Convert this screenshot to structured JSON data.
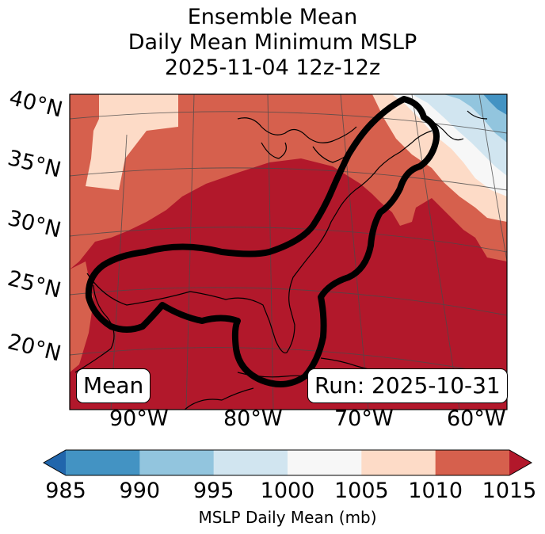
{
  "title": {
    "line1": "Ensemble Mean",
    "line2": "Daily Mean Minimum MSLP",
    "line3": "2025-11-04 12z-12z"
  },
  "map": {
    "lat_labels": [
      "40°N",
      "35°N",
      "30°N",
      "25°N",
      "20°N"
    ],
    "lon_labels": [
      "90°W",
      "80°W",
      "70°W",
      "60°W"
    ],
    "stat_box": "Mean",
    "run_box": "Run: 2025-10-31",
    "region_description_colors": {
      "land_ocean_high": "#b2182b",
      "mid": "#d6604d"
    }
  },
  "colorbar": {
    "ticks": [
      "985",
      "990",
      "995",
      "1000",
      "1005",
      "1010",
      "1015"
    ],
    "colors": [
      "#2166ac",
      "#4393c3",
      "#92c5de",
      "#d1e5f0",
      "#f7f7f7",
      "#fddbc7",
      "#d6604d",
      "#b2182b"
    ],
    "label": "MSLP Daily Mean (mb)"
  }
}
